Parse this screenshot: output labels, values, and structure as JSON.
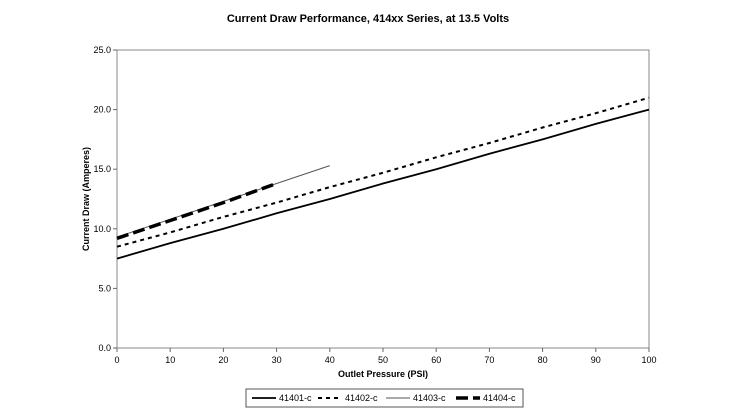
{
  "chart_data": {
    "type": "line",
    "title": "Current Draw Performance, 414xx  Series, at 13.5 Volts",
    "xlabel": "Outlet Pressure (PSI)",
    "ylabel": "Current Draw (Amperes)",
    "xlim": [
      0,
      100
    ],
    "ylim": [
      0,
      25
    ],
    "x_ticks": [
      0,
      10,
      20,
      30,
      40,
      50,
      60,
      70,
      80,
      90,
      100
    ],
    "y_ticks": [
      "0.0",
      "5.0",
      "10.0",
      "15.0",
      "20.0",
      "25.0"
    ],
    "grid": false,
    "legend_position": "bottom",
    "series": [
      {
        "name": "41401-c",
        "style": "solid-thick",
        "color": "#000000",
        "x": [
          0,
          10,
          20,
          30,
          40,
          50,
          60,
          70,
          80,
          90,
          100
        ],
        "y": [
          7.5,
          8.8,
          10.0,
          11.3,
          12.5,
          13.8,
          15.0,
          16.3,
          17.5,
          18.8,
          20.0
        ]
      },
      {
        "name": "41402-c",
        "style": "dashed",
        "color": "#000000",
        "x": [
          0,
          10,
          20,
          30,
          40,
          50,
          60,
          70,
          80,
          90,
          100
        ],
        "y": [
          8.5,
          9.7,
          11.0,
          12.2,
          13.5,
          14.7,
          16.0,
          17.2,
          18.5,
          19.7,
          21.0
        ]
      },
      {
        "name": "41403-c",
        "style": "solid-thin",
        "color": "#555555",
        "x": [
          0,
          10,
          20,
          30,
          40
        ],
        "y": [
          9.3,
          10.8,
          12.3,
          13.8,
          15.3
        ]
      },
      {
        "name": "41404-c",
        "style": "long-dash-thick",
        "color": "#000000",
        "x": [
          0,
          10,
          20,
          30
        ],
        "y": [
          9.2,
          10.7,
          12.2,
          13.8
        ]
      }
    ]
  }
}
